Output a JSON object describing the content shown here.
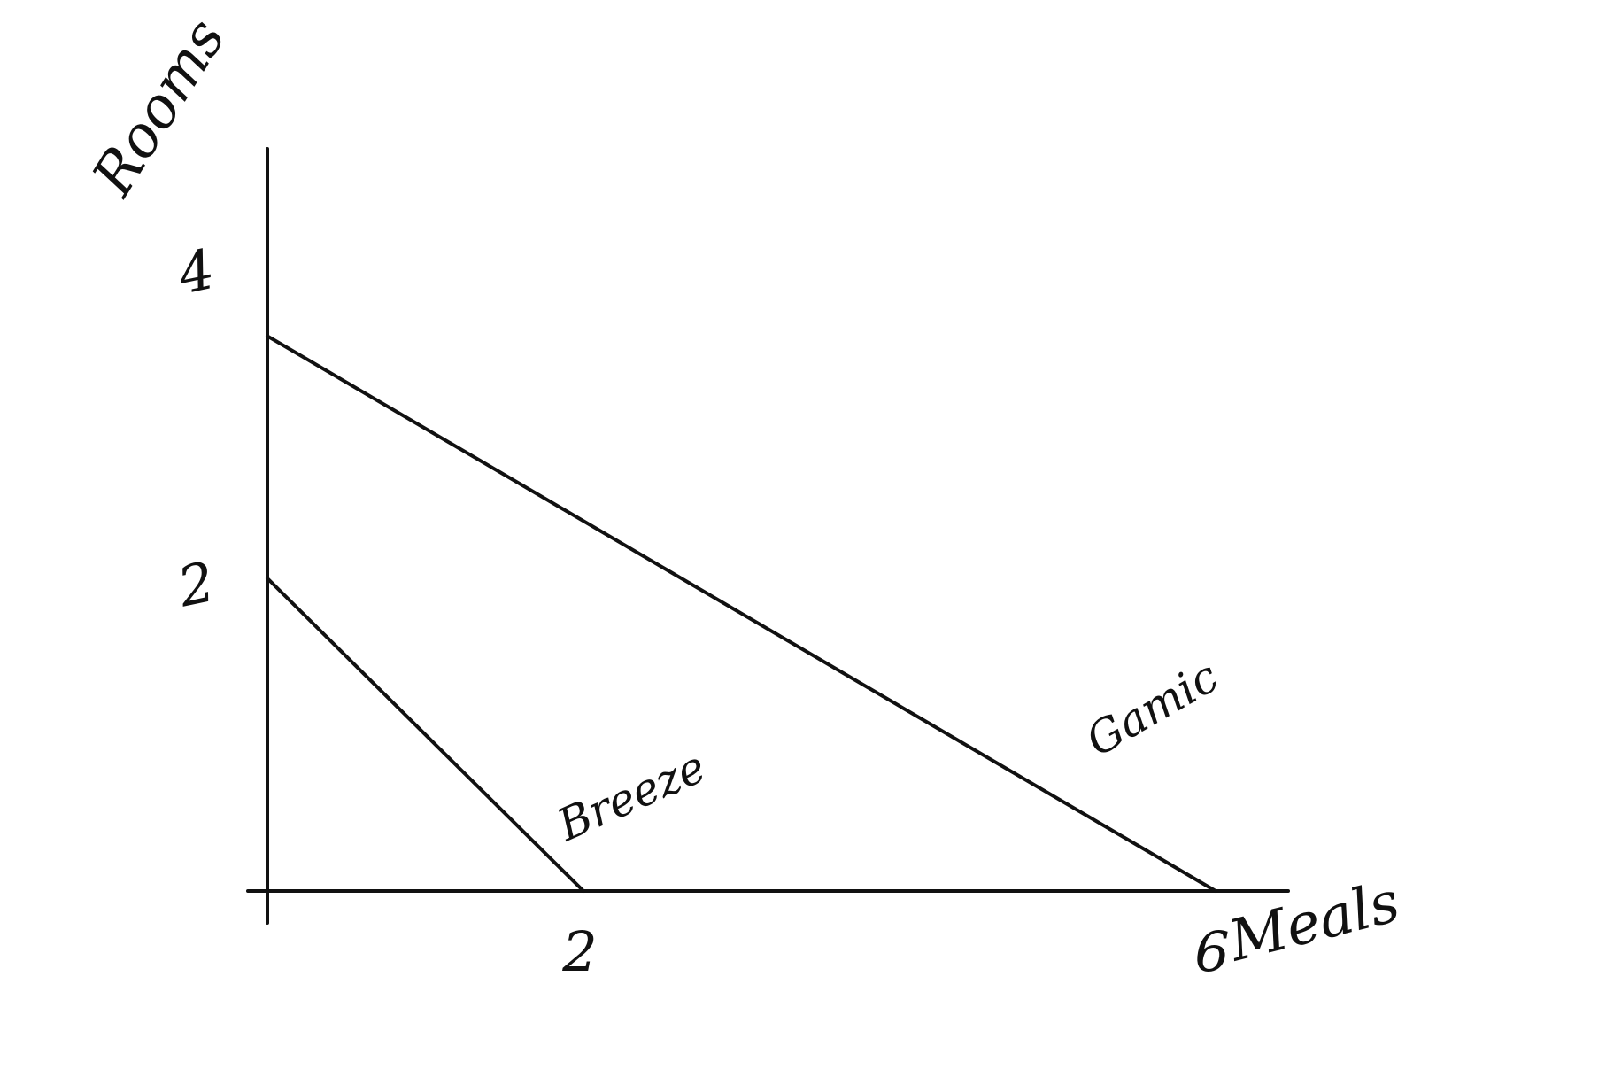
{
  "chart_data": {
    "type": "line",
    "title": "",
    "xlabel": "Meals",
    "ylabel": "Rooms",
    "x_ticks": [
      {
        "value": 2,
        "label": "2"
      },
      {
        "value": 6,
        "label": "6"
      }
    ],
    "y_ticks": [
      {
        "value": 2,
        "label": "2"
      },
      {
        "value": 4,
        "label": "4"
      }
    ],
    "xlim": [
      0,
      6.5
    ],
    "ylim": [
      0,
      4.6
    ],
    "grid": false,
    "series": [
      {
        "name": "Breeze",
        "x": [
          0,
          2
        ],
        "y": [
          2,
          0
        ]
      },
      {
        "name": "Gamic",
        "x": [
          0,
          6
        ],
        "y": [
          3.55,
          0
        ]
      }
    ],
    "line_color": "#111111"
  }
}
